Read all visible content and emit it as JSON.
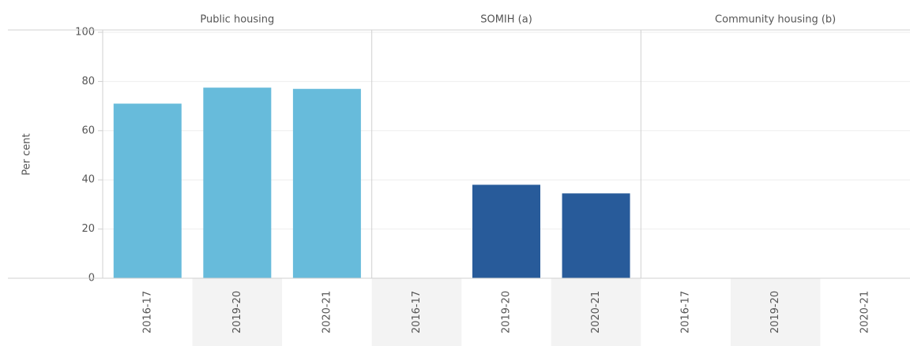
{
  "chart_data": {
    "type": "bar",
    "ylabel": "Per cent",
    "ylim": [
      0,
      100
    ],
    "yticks": [
      0,
      20,
      40,
      60,
      80,
      100
    ],
    "grid": true,
    "panels": [
      {
        "title": "Public housing",
        "categories": [
          "2016-17",
          "2019-20",
          "2020-21"
        ],
        "values": [
          71,
          77.5,
          77
        ],
        "color": "#67bbdb"
      },
      {
        "title": "SOMIH (a)",
        "categories": [
          "2016-17",
          "2019-20",
          "2020-21"
        ],
        "values": [
          null,
          38,
          34.5
        ],
        "color": "#285b9a"
      },
      {
        "title": "Community housing (b)",
        "categories": [
          "2016-17",
          "2019-20",
          "2020-21"
        ],
        "values": [
          null,
          null,
          null
        ]
      }
    ]
  }
}
